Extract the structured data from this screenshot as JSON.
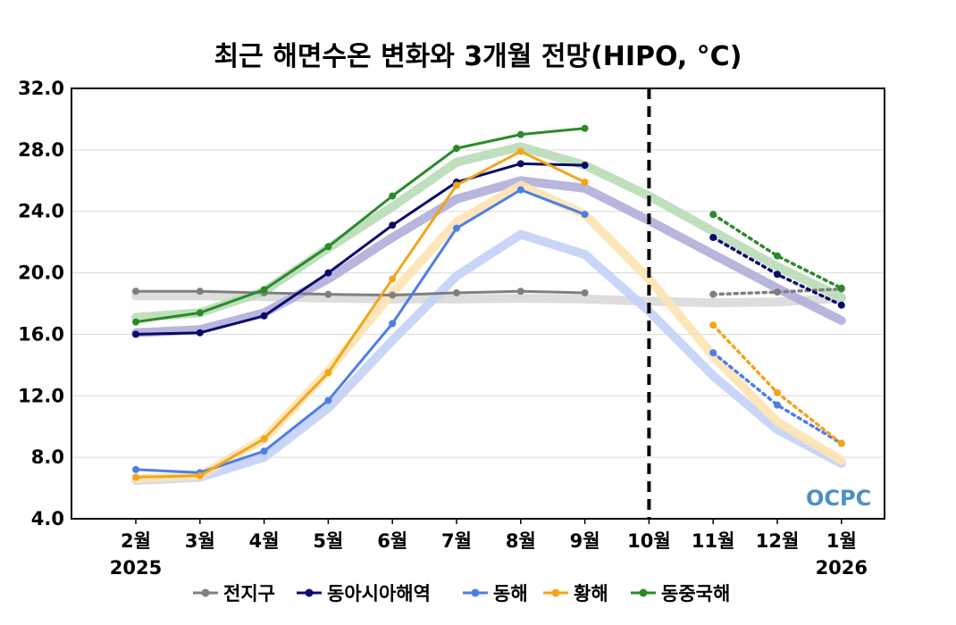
{
  "chart_data": {
    "type": "line",
    "title": "최근 해면수온 변화와 3개월 전망(HIPO, °C)",
    "xlabel": "",
    "ylabel": "",
    "ylim": [
      4.0,
      32.0
    ],
    "yticks": [
      "4.0",
      "8.0",
      "12.0",
      "16.0",
      "20.0",
      "24.0",
      "28.0",
      "32.0"
    ],
    "categories": [
      "2월",
      "3월",
      "4월",
      "5월",
      "6월",
      "7월",
      "8월",
      "9월",
      "10월",
      "11월",
      "12월",
      "1월"
    ],
    "year_labels": {
      "start": "2025",
      "end": "2026"
    },
    "forecast_start": "10월",
    "grid": true,
    "legend_position": "bottom",
    "series": [
      {
        "name": "전지구",
        "color": "#7f7f7f",
        "observed": [
          18.8,
          18.8,
          18.7,
          18.6,
          18.55,
          18.7,
          18.8,
          18.7
        ],
        "forecast": [
          18.6,
          18.75,
          18.95
        ],
        "climatology": [
          18.5,
          18.5,
          18.45,
          18.35,
          18.3,
          18.3,
          18.35,
          18.3,
          18.15,
          18.05,
          18.1,
          18.35
        ],
        "band_color": "#d9d9d9"
      },
      {
        "name": "동아시아해역",
        "color": "#0a0a6e",
        "observed": [
          16.0,
          16.1,
          17.2,
          20.0,
          23.1,
          25.9,
          27.1,
          27.0
        ],
        "forecast": [
          22.3,
          19.9,
          17.9
        ],
        "climatology": [
          16.1,
          16.3,
          17.4,
          19.6,
          22.3,
          24.8,
          26.0,
          25.5,
          23.4,
          21.2,
          19.0,
          16.9
        ],
        "band_color": "#b0aed8"
      },
      {
        "name": "동해",
        "color": "#4d7ee8",
        "observed": [
          7.2,
          7.0,
          8.4,
          11.7,
          16.7,
          22.9,
          25.4,
          23.8
        ],
        "forecast": [
          14.8,
          11.4,
          8.9
        ],
        "climatology": [
          6.5,
          6.7,
          8.0,
          11.2,
          15.6,
          19.8,
          22.5,
          21.2,
          17.5,
          13.3,
          9.8,
          7.6
        ],
        "band_color": "#c4d1f7"
      },
      {
        "name": "황해",
        "color": "#f2a51b",
        "observed": [
          6.7,
          6.8,
          9.2,
          13.5,
          19.6,
          25.7,
          27.9,
          25.9
        ],
        "forecast": [
          16.6,
          12.2,
          8.9
        ],
        "climatology": [
          6.6,
          6.8,
          9.2,
          13.6,
          18.7,
          23.3,
          25.7,
          23.8,
          19.6,
          14.6,
          10.3,
          7.8
        ],
        "band_color": "#fde3b3"
      },
      {
        "name": "동중국해",
        "color": "#2a8a2a",
        "observed": [
          16.8,
          17.4,
          18.9,
          21.7,
          25.0,
          28.1,
          29.0,
          29.4
        ],
        "forecast": [
          23.8,
          21.1,
          19.0
        ],
        "climatology": [
          17.1,
          17.4,
          18.8,
          21.6,
          24.3,
          27.2,
          28.2,
          27.0,
          25.0,
          22.7,
          20.4,
          18.4
        ],
        "band_color": "#b9dcb7"
      }
    ]
  },
  "watermark": "OCPC"
}
